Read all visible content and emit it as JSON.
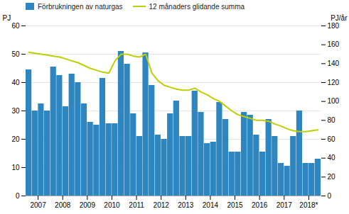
{
  "chart_data": {
    "type": "bar",
    "categories": [
      null,
      "2007",
      null,
      null,
      null,
      "2008",
      null,
      null,
      null,
      "2009",
      null,
      null,
      null,
      "2010",
      null,
      null,
      null,
      "2011",
      null,
      null,
      null,
      "2012",
      null,
      null,
      null,
      "2013",
      null,
      null,
      null,
      "2014",
      null,
      null,
      null,
      "2015",
      null,
      null,
      null,
      "2016",
      null,
      null,
      null,
      "2017",
      null,
      null,
      null,
      "2018*",
      null,
      null
    ],
    "series": [
      {
        "name": "Förbrukningen av naturgas",
        "type": "bar",
        "color": "#2E86C1",
        "values": [
          44.5,
          30.0,
          32.5,
          30.0,
          45.5,
          42.5,
          31.5,
          43.0,
          40.0,
          32.5,
          26.0,
          25.0,
          41.5,
          25.5,
          25.5,
          51.0,
          46.5,
          29.0,
          21.0,
          50.5,
          39.0,
          21.5,
          20.0,
          29.0,
          33.5,
          21.0,
          21.0,
          37.0,
          29.5,
          18.5,
          19.0,
          33.0,
          27.0,
          15.5,
          15.5,
          29.5,
          28.5,
          21.5,
          15.5,
          27.0,
          21.0,
          11.5,
          10.5,
          21.0,
          30.0,
          11.5,
          11.5,
          13.0
        ]
      },
      {
        "name": "12 månaders glidande summa",
        "type": "line",
        "color": "#BFCE00",
        "axis": "y2",
        "values": [
          152,
          151,
          150,
          149,
          148,
          147,
          145,
          143,
          141,
          138,
          135,
          133,
          131,
          130,
          143,
          150,
          150,
          148,
          147,
          150,
          130,
          122,
          117,
          115,
          113,
          112,
          112,
          114,
          110,
          107,
          103,
          100,
          95,
          90,
          86,
          84,
          82,
          80,
          80,
          79,
          76,
          74,
          71,
          69,
          68,
          68,
          69,
          70
        ]
      }
    ],
    "ylabel": "PJ",
    "y2label": "PJ/år",
    "ylim": [
      0,
      60
    ],
    "yticks": [
      0,
      10,
      20,
      30,
      40,
      50,
      60
    ],
    "y2lim": [
      0,
      180
    ],
    "y2ticks": [
      0,
      20,
      40,
      60,
      80,
      100,
      120,
      140,
      160,
      180
    ],
    "grid": true,
    "legend": "top-left"
  }
}
